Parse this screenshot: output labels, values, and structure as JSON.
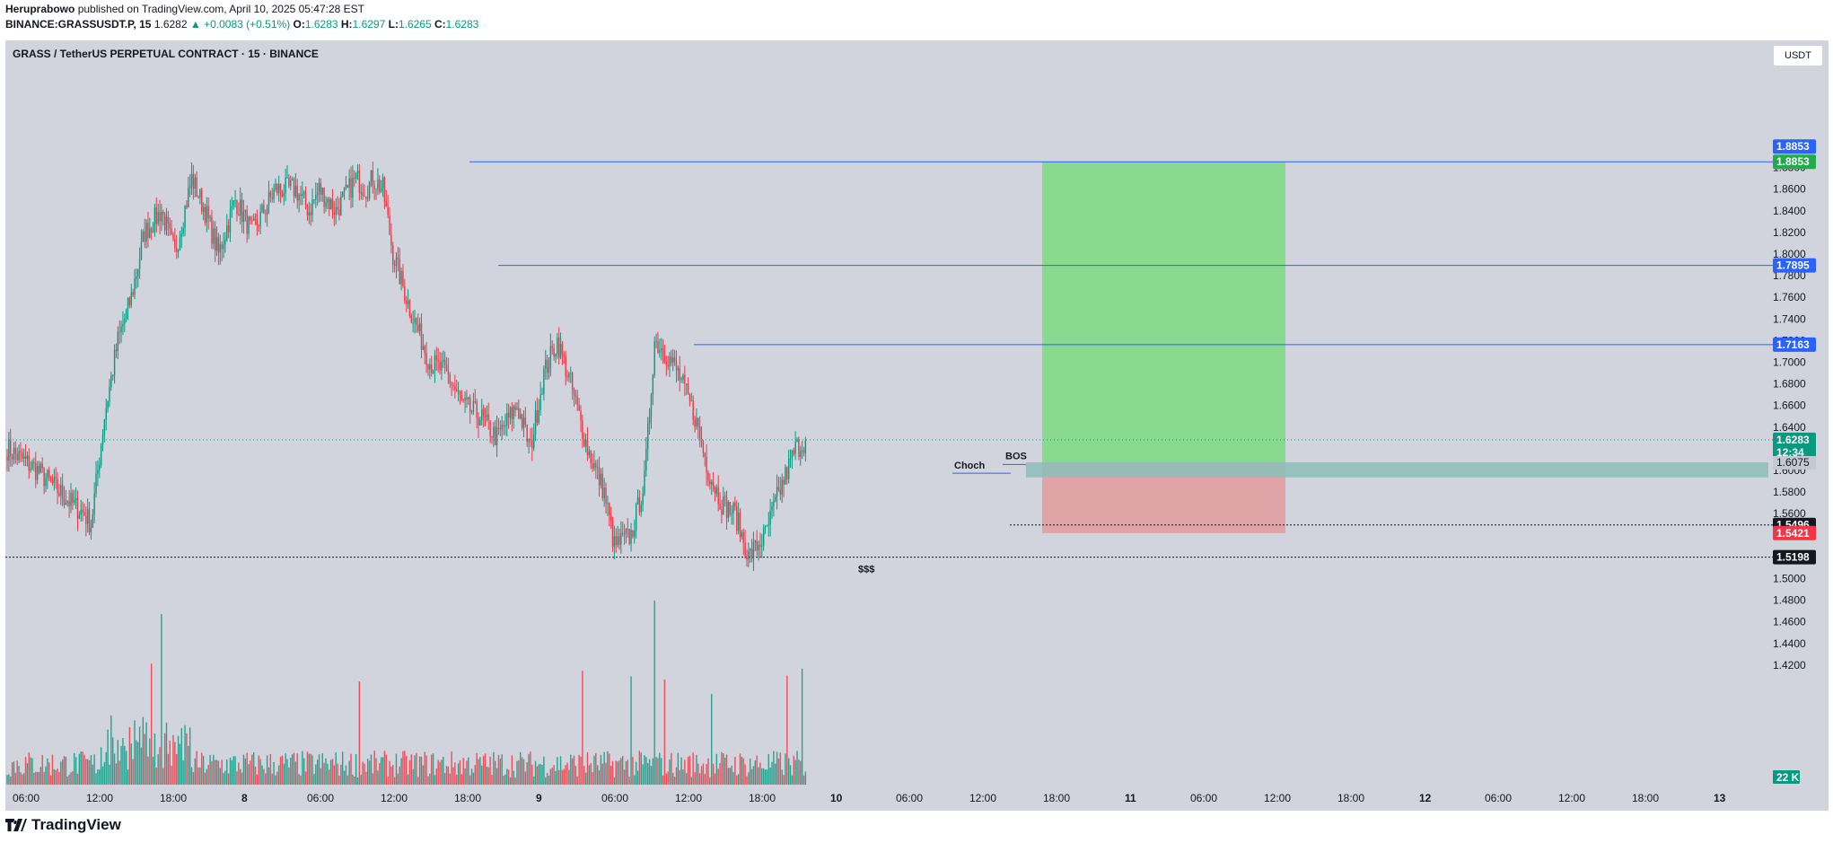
{
  "header": {
    "publisher": "Heruprabowo",
    "published_text": "published on TradingView.com, April 10, 2025 05:47:28 EST",
    "symbol": "BINANCE:GRASSUSDT.P, 15",
    "last": "1.6282",
    "change": "▲ +0.0083 (+0.51%)",
    "o_label": "O:",
    "o_val": "1.6283",
    "h_label": "H:",
    "h_val": "1.6297",
    "l_label": "L:",
    "l_val": "1.6265",
    "c_label": "C:",
    "c_val": "1.6283"
  },
  "chart_title": "GRASS / TetherUS PERPETUAL CONTRACT · 15 · BINANCE",
  "currency_button": "USDT",
  "volume_label": "22 K",
  "footer_brand": "TradingView",
  "colors": {
    "background": "#d1d4dc",
    "up": "#089981",
    "down": "#f23645",
    "target_zone": "#89d98f",
    "stop_zone": "#e0a3a6",
    "entry_band": "#8fbfba",
    "level_line": "#2962ff"
  },
  "chart_data": {
    "type": "candlestick",
    "title": "GRASS / TetherUS PERPETUAL CONTRACT · 15 · BINANCE",
    "ylim": [
      1.4,
      1.9
    ],
    "y_ticks": [
      "1.8800",
      "1.8600",
      "1.8400",
      "1.8200",
      "1.8000",
      "1.7800",
      "1.7600",
      "1.7400",
      "1.7200",
      "1.7000",
      "1.6800",
      "1.6600",
      "1.6400",
      "1.6200",
      "1.6000",
      "1.5800",
      "1.5600",
      "1.5400",
      "1.5200",
      "1.5000",
      "1.4800",
      "1.4600",
      "1.4400",
      "1.4200"
    ],
    "x_ticks": [
      "06:00",
      "12:00",
      "18:00",
      "8",
      "06:00",
      "12:00",
      "18:00",
      "9",
      "06:00",
      "12:00",
      "18:00",
      "10",
      "06:00",
      "12:00",
      "18:00",
      "11",
      "06:00",
      "12:00",
      "18:00",
      "12",
      "06:00",
      "12:00",
      "18:00",
      "13"
    ],
    "anchors": [
      [
        0,
        1.62
      ],
      [
        18,
        1.6
      ],
      [
        38,
        1.57
      ],
      [
        46,
        1.56
      ],
      [
        50,
        1.55
      ],
      [
        58,
        1.65
      ],
      [
        66,
        1.72
      ],
      [
        74,
        1.76
      ],
      [
        82,
        1.82
      ],
      [
        92,
        1.84
      ],
      [
        100,
        1.8
      ],
      [
        110,
        1.87
      ],
      [
        118,
        1.84
      ],
      [
        126,
        1.8
      ],
      [
        136,
        1.85
      ],
      [
        146,
        1.82
      ],
      [
        160,
        1.86
      ],
      [
        172,
        1.86
      ],
      [
        180,
        1.84
      ],
      [
        186,
        1.86
      ],
      [
        196,
        1.84
      ],
      [
        208,
        1.87
      ],
      [
        214,
        1.86
      ],
      [
        218,
        1.87
      ],
      [
        224,
        1.86
      ],
      [
        230,
        1.8
      ],
      [
        240,
        1.75
      ],
      [
        252,
        1.7
      ],
      [
        262,
        1.69
      ],
      [
        272,
        1.66
      ],
      [
        282,
        1.65
      ],
      [
        292,
        1.63
      ],
      [
        304,
        1.66
      ],
      [
        312,
        1.62
      ],
      [
        320,
        1.69
      ],
      [
        328,
        1.72
      ],
      [
        336,
        1.68
      ],
      [
        346,
        1.62
      ],
      [
        356,
        1.58
      ],
      [
        362,
        1.53
      ],
      [
        372,
        1.54
      ],
      [
        380,
        1.59
      ],
      [
        386,
        1.72
      ],
      [
        392,
        1.71
      ],
      [
        400,
        1.69
      ],
      [
        410,
        1.65
      ],
      [
        418,
        1.6
      ],
      [
        426,
        1.57
      ],
      [
        434,
        1.56
      ],
      [
        442,
        1.52
      ],
      [
        452,
        1.54
      ],
      [
        458,
        1.57
      ],
      [
        470,
        1.62
      ],
      [
        476,
        1.628
      ]
    ],
    "horizontal_levels": [
      {
        "price": 1.8853,
        "label": "1.8853",
        "color": "#2962ff"
      },
      {
        "price": 1.7895,
        "label": "1.7895",
        "color": "#2962ff"
      },
      {
        "price": 1.7163,
        "label": "1.7163",
        "color": "#2962ff"
      },
      {
        "price": 1.5496,
        "label": "1.5496",
        "color": "#131722"
      },
      {
        "price": 1.5198,
        "label": "1.5198",
        "color": "#131722"
      }
    ],
    "current_price": {
      "value": "1.6283",
      "countdown": "12:34"
    },
    "position": {
      "entry": 1.6075,
      "target": 1.8853,
      "stop": 1.5421,
      "entry_label": "1.6075",
      "target_label": "1.8853",
      "stop_label": "1.5421"
    },
    "annotations": [
      {
        "text": "Choch",
        "price": 1.604
      },
      {
        "text": "BOS",
        "price": 1.613
      },
      {
        "text": "$$$",
        "price": 1.509
      }
    ]
  }
}
